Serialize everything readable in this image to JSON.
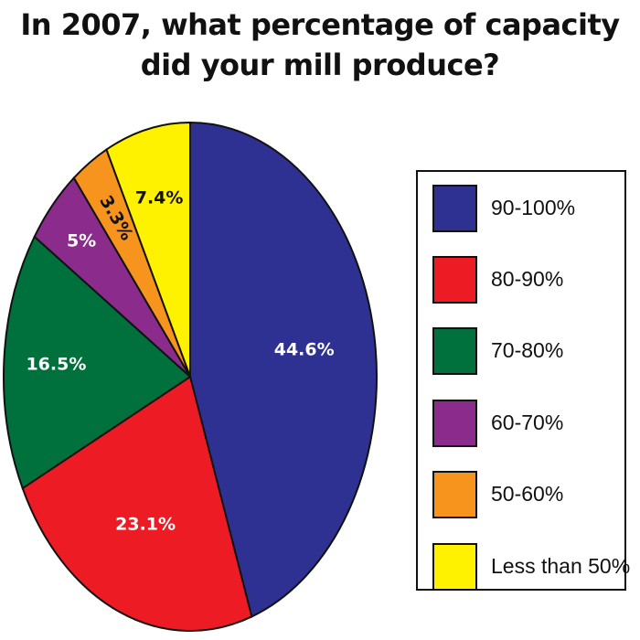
{
  "chart_data": {
    "type": "pie",
    "title_line1": "In 2007, what percentage of capacity",
    "title_line2": "did your mill produce?",
    "slices": [
      {
        "label": "90-100%",
        "value": 44.6,
        "display": "44.6%",
        "color": "#2e3192",
        "text_color": "#ffffff"
      },
      {
        "label": "80-90%",
        "value": 23.1,
        "display": "23.1%",
        "color": "#ed1c24",
        "text_color": "#ffffff"
      },
      {
        "label": "70-80%",
        "value": 16.5,
        "display": "16.5%",
        "color": "#00703c",
        "text_color": "#ffffff"
      },
      {
        "label": "60-70%",
        "value": 5,
        "display": "5%",
        "color": "#8b2c8d",
        "text_color": "#ffffff"
      },
      {
        "label": "50-60%",
        "value": 3.3,
        "display": "3.3%",
        "color": "#f7941d",
        "text_color": "#111111"
      },
      {
        "label": "Less than 50%",
        "value": 7.4,
        "display": "7.4%",
        "color": "#fff200",
        "text_color": "#111111"
      }
    ],
    "legend_position": "right"
  }
}
